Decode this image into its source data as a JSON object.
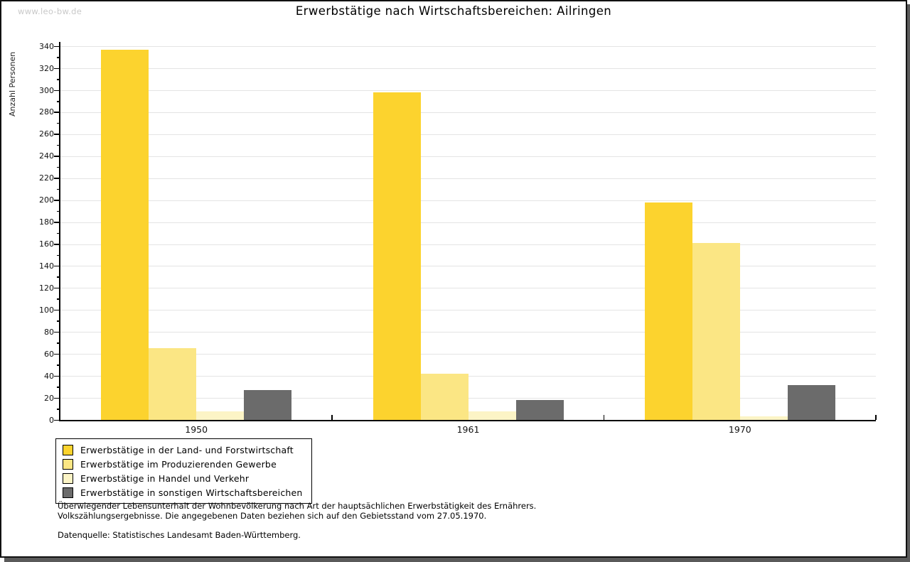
{
  "watermark": "www.leo-bw.de",
  "footnote": {
    "line1": "Überwiegender Lebensunterhalt der Wohnbevölkerung nach Art der hauptsächlichen Erwerbstätigkeit des Ernährers.",
    "line2": "Volkszählungsergebnisse. Die angegebenen Daten beziehen sich auf den Gebietsstand vom 27.05.1970.",
    "source": "Datenquelle: Statistisches Landesamt Baden-Württemberg."
  },
  "chart_data": {
    "type": "bar",
    "title": "Erwerbstätige nach Wirtschaftsbereichen: Ailringen",
    "categories": [
      "1950",
      "1961",
      "1970"
    ],
    "series": [
      {
        "name": "Erwerbstätige in der Land- und Forstwirtschaft",
        "color": "#fcd32e",
        "values": [
          337,
          298,
          198
        ]
      },
      {
        "name": "Erwerbstätige im Produzierenden Gewerbe",
        "color": "#fbe684",
        "values": [
          65,
          42,
          161
        ]
      },
      {
        "name": "Erwerbstätige in Handel und Verkehr",
        "color": "#fcf4c6",
        "values": [
          8,
          8,
          3
        ]
      },
      {
        "name": "Erwerbstätige in sonstigen Wirtschaftsbereichen",
        "color": "#6b6b6b",
        "values": [
          27,
          18,
          32
        ]
      }
    ],
    "xlabel": "",
    "ylabel": "Anzahl Personen",
    "ylim": [
      0,
      344
    ],
    "ytick_interval": 20,
    "ytick_minor_interval": 10,
    "grid": true,
    "legend_position": "bottom-left",
    "axis_color": "#000000",
    "gridline_color": "#e4e4e4"
  }
}
